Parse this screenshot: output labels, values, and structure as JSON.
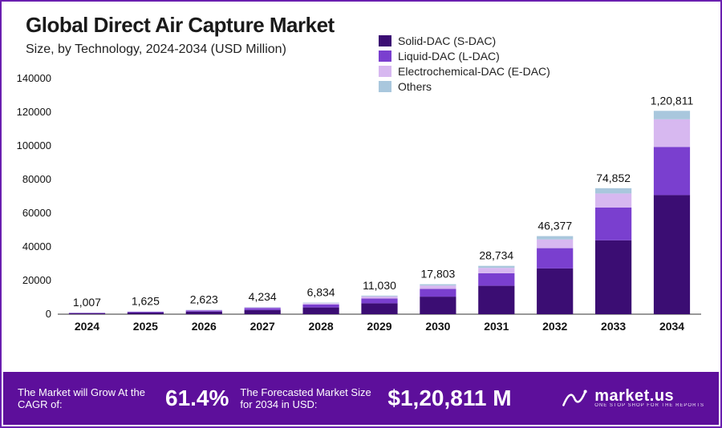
{
  "title": "Global Direct Air Capture Market",
  "subtitle": "Size, by Technology, 2024-2034 (USD Million)",
  "chart": {
    "type": "stacked-bar",
    "background_color": "#ffffff",
    "border_color": "#6a1fb0",
    "categories": [
      "2024",
      "2025",
      "2026",
      "2027",
      "2028",
      "2029",
      "2030",
      "2031",
      "2032",
      "2033",
      "2034"
    ],
    "totals_labels": [
      "1,007",
      "1,625",
      "2,623",
      "4,234",
      "6,834",
      "11,030",
      "17,803",
      "28,734",
      "46,377",
      "74,852",
      "1,20,811"
    ],
    "series": [
      {
        "name": "Solid-DAC (S-DAC)",
        "color": "#3b0d73",
        "values": [
          590,
          950,
          1540,
          2490,
          4010,
          6470,
          10440,
          16880,
          27200,
          43900,
          70800
        ]
      },
      {
        "name": "Liquid-DAC (L-DAC)",
        "color": "#7a3fcf",
        "values": [
          260,
          420,
          680,
          1100,
          1770,
          2860,
          4620,
          7440,
          12030,
          19430,
          28600
        ]
      },
      {
        "name": "Electrochemical-DAC (E-DAC)",
        "color": "#d7b8f0",
        "values": [
          110,
          180,
          290,
          470,
          760,
          1230,
          1980,
          3210,
          5180,
          8370,
          16400
        ]
      },
      {
        "name": "Others",
        "color": "#a9c7dd",
        "values": [
          47,
          75,
          113,
          174,
          294,
          470,
          763,
          1204,
          1967,
          3152,
          5011
        ]
      }
    ],
    "y_axis": {
      "min": 0,
      "max": 140000,
      "tick_step": 20000,
      "tick_labels": [
        "0",
        "20000",
        "40000",
        "60000",
        "80000",
        "100000",
        "120000",
        "140000"
      ],
      "label_fontsize": 13,
      "label_color": "#111111"
    },
    "x_axis": {
      "label_fontsize": 14,
      "label_fontweight": 700,
      "label_color": "#111111"
    },
    "bar_total_label_fontsize": 14,
    "bar_width_ratio": 0.62,
    "grid": {
      "show": false
    },
    "legend": {
      "position": "top-right",
      "swatch_w": 16,
      "swatch_h": 14,
      "fontsize": 14
    }
  },
  "footer": {
    "background_color": "#5d0f9b",
    "text_color": "#ffffff",
    "cagr_label": "The Market will Grow At the CAGR of:",
    "cagr_value": "61.4%",
    "forecast_label": "The Forecasted Market Size for 2034 in USD:",
    "forecast_value": "$1,20,811 M",
    "brand_name": "market.us",
    "brand_tagline": "ONE STOP SHOP FOR THE REPORTS"
  }
}
